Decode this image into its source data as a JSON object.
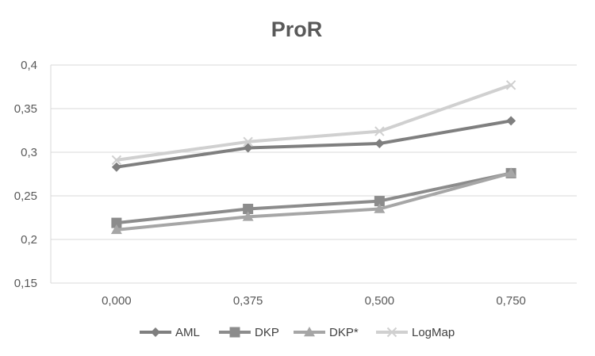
{
  "chart_data": {
    "type": "line",
    "title": "ProR",
    "xlabel": "",
    "ylabel": "",
    "categories": [
      "0,000",
      "0,375",
      "0,500",
      "0,750"
    ],
    "ylim": [
      0.15,
      0.4
    ],
    "yticks": [
      "0,15",
      "0,2",
      "0,25",
      "0,3",
      "0,35",
      "0,4"
    ],
    "grid": "horizontal",
    "legend_position": "bottom",
    "series": [
      {
        "name": "AML",
        "values": [
          0.283,
          0.305,
          0.31,
          0.336
        ],
        "color": "#7f7f7f",
        "marker": "diamond"
      },
      {
        "name": "DKP",
        "values": [
          0.219,
          0.235,
          0.244,
          0.276
        ],
        "color": "#8c8c8c",
        "marker": "square"
      },
      {
        "name": "DKP*",
        "values": [
          0.211,
          0.226,
          0.235,
          0.276
        ],
        "color": "#a6a6a6",
        "marker": "triangle"
      },
      {
        "name": "LogMap",
        "values": [
          0.291,
          0.312,
          0.324,
          0.377
        ],
        "color": "#d0d0d0",
        "marker": "x"
      }
    ]
  }
}
